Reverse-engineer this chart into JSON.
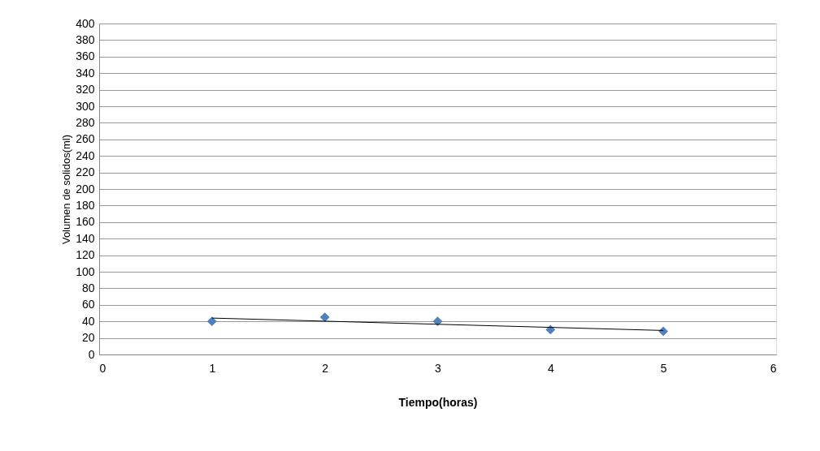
{
  "chart_data": {
    "type": "scatter",
    "xlabel": "Tiempo(horas)",
    "ylabel": "Volumen de solidos(ml)",
    "series": [
      {
        "color": "#4f81bd",
        "x": [
          1,
          2,
          3,
          4,
          5
        ],
        "values": [
          40,
          45,
          40,
          30,
          28
        ],
        "marker": "diamond"
      },
      {
        "type": "line",
        "color": "#000000",
        "x": [
          1,
          5
        ],
        "values": [
          44,
          29
        ],
        "marker": "none"
      }
    ],
    "xlim": [
      0,
      6
    ],
    "xticks": [
      0,
      1,
      2,
      3,
      4,
      5,
      6
    ],
    "ylim": [
      0,
      400
    ],
    "yticks": [
      0,
      20,
      40,
      60,
      80,
      100,
      120,
      140,
      160,
      180,
      200,
      220,
      240,
      260,
      280,
      300,
      320,
      340,
      360,
      380,
      400
    ],
    "grid": "y"
  }
}
